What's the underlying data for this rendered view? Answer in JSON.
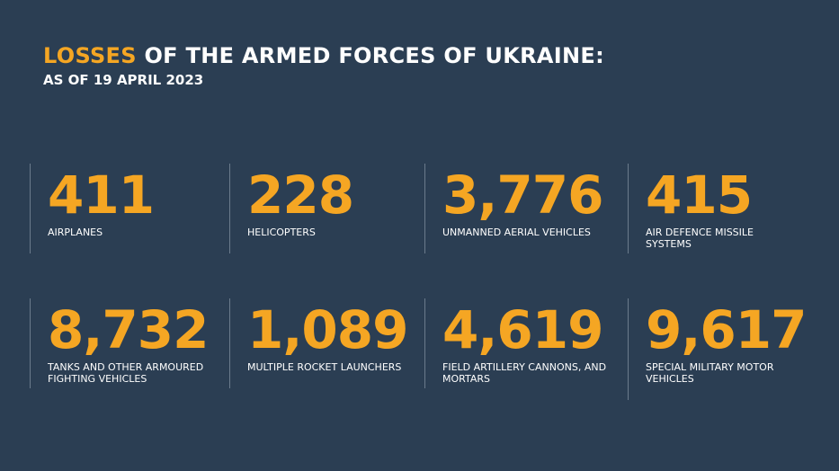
{
  "header": {
    "title_highlight": "LOSSES",
    "title_rest": "OF THE ARMED FORCES OF UKRAINE:",
    "subtitle": "AS OF 19 APRIL 2023"
  },
  "stats": [
    {
      "value": "411",
      "label": "AIRPLANES"
    },
    {
      "value": "228",
      "label": "HELICOPTERS"
    },
    {
      "value": "3,776",
      "label": "UNMANNED AERIAL VEHICLES"
    },
    {
      "value": "415",
      "label": "AIR DEFENCE MISSILE SYSTEMS"
    },
    {
      "value": "8,732",
      "label": "TANKS AND OTHER ARMOURED FIGHTING VEHICLES"
    },
    {
      "value": "1,089",
      "label": "MULTIPLE ROCKET LAUNCHERS"
    },
    {
      "value": "4,619",
      "label": "FIELD ARTILLERY CANNONS, AND MORTARS"
    },
    {
      "value": "9,617",
      "label": "SPECIAL MILITARY MOTOR VEHICLES"
    }
  ]
}
